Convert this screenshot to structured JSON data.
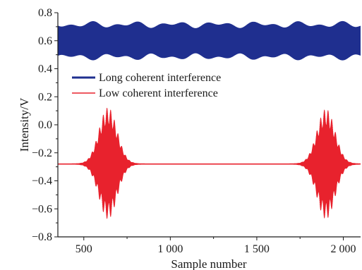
{
  "chart_data": {
    "type": "line",
    "title": "",
    "xlabel": "Sample number",
    "ylabel": "Intensity/V",
    "xlim": [
      350,
      2100
    ],
    "ylim": [
      -0.8,
      0.8
    ],
    "xticks": [
      500,
      1000,
      1500,
      2000
    ],
    "xtick_labels": [
      "500",
      "1 000",
      "1 500",
      "2 000"
    ],
    "yticks": [
      -0.8,
      -0.6,
      -0.4,
      -0.2,
      0.0,
      0.2,
      0.4,
      0.6,
      0.8
    ],
    "ytick_labels": [
      "−0.8",
      "−0.6",
      "−0.4",
      "−0.2",
      "0.0",
      "0.2",
      "0.4",
      "0.6",
      "0.8"
    ],
    "grid": false,
    "legend_position": "upper-left",
    "series": [
      {
        "name": "Long coherent interference",
        "color": "#1f2f8f",
        "form": "uniform oscillation",
        "center": 0.6,
        "half_amplitude": 0.14,
        "x_range": [
          350,
          2100
        ]
      },
      {
        "name": "Low coherent interference",
        "color": "#e8222d",
        "form": "oscillation with two gaussian envelopes",
        "baseline": -0.28,
        "x_range": [
          350,
          2100
        ],
        "packets": [
          {
            "center_x": 640,
            "peak_max": 0.12,
            "peak_min": -0.67
          },
          {
            "center_x": 1900,
            "peak_max": 0.11,
            "peak_min": -0.67
          }
        ]
      }
    ]
  }
}
